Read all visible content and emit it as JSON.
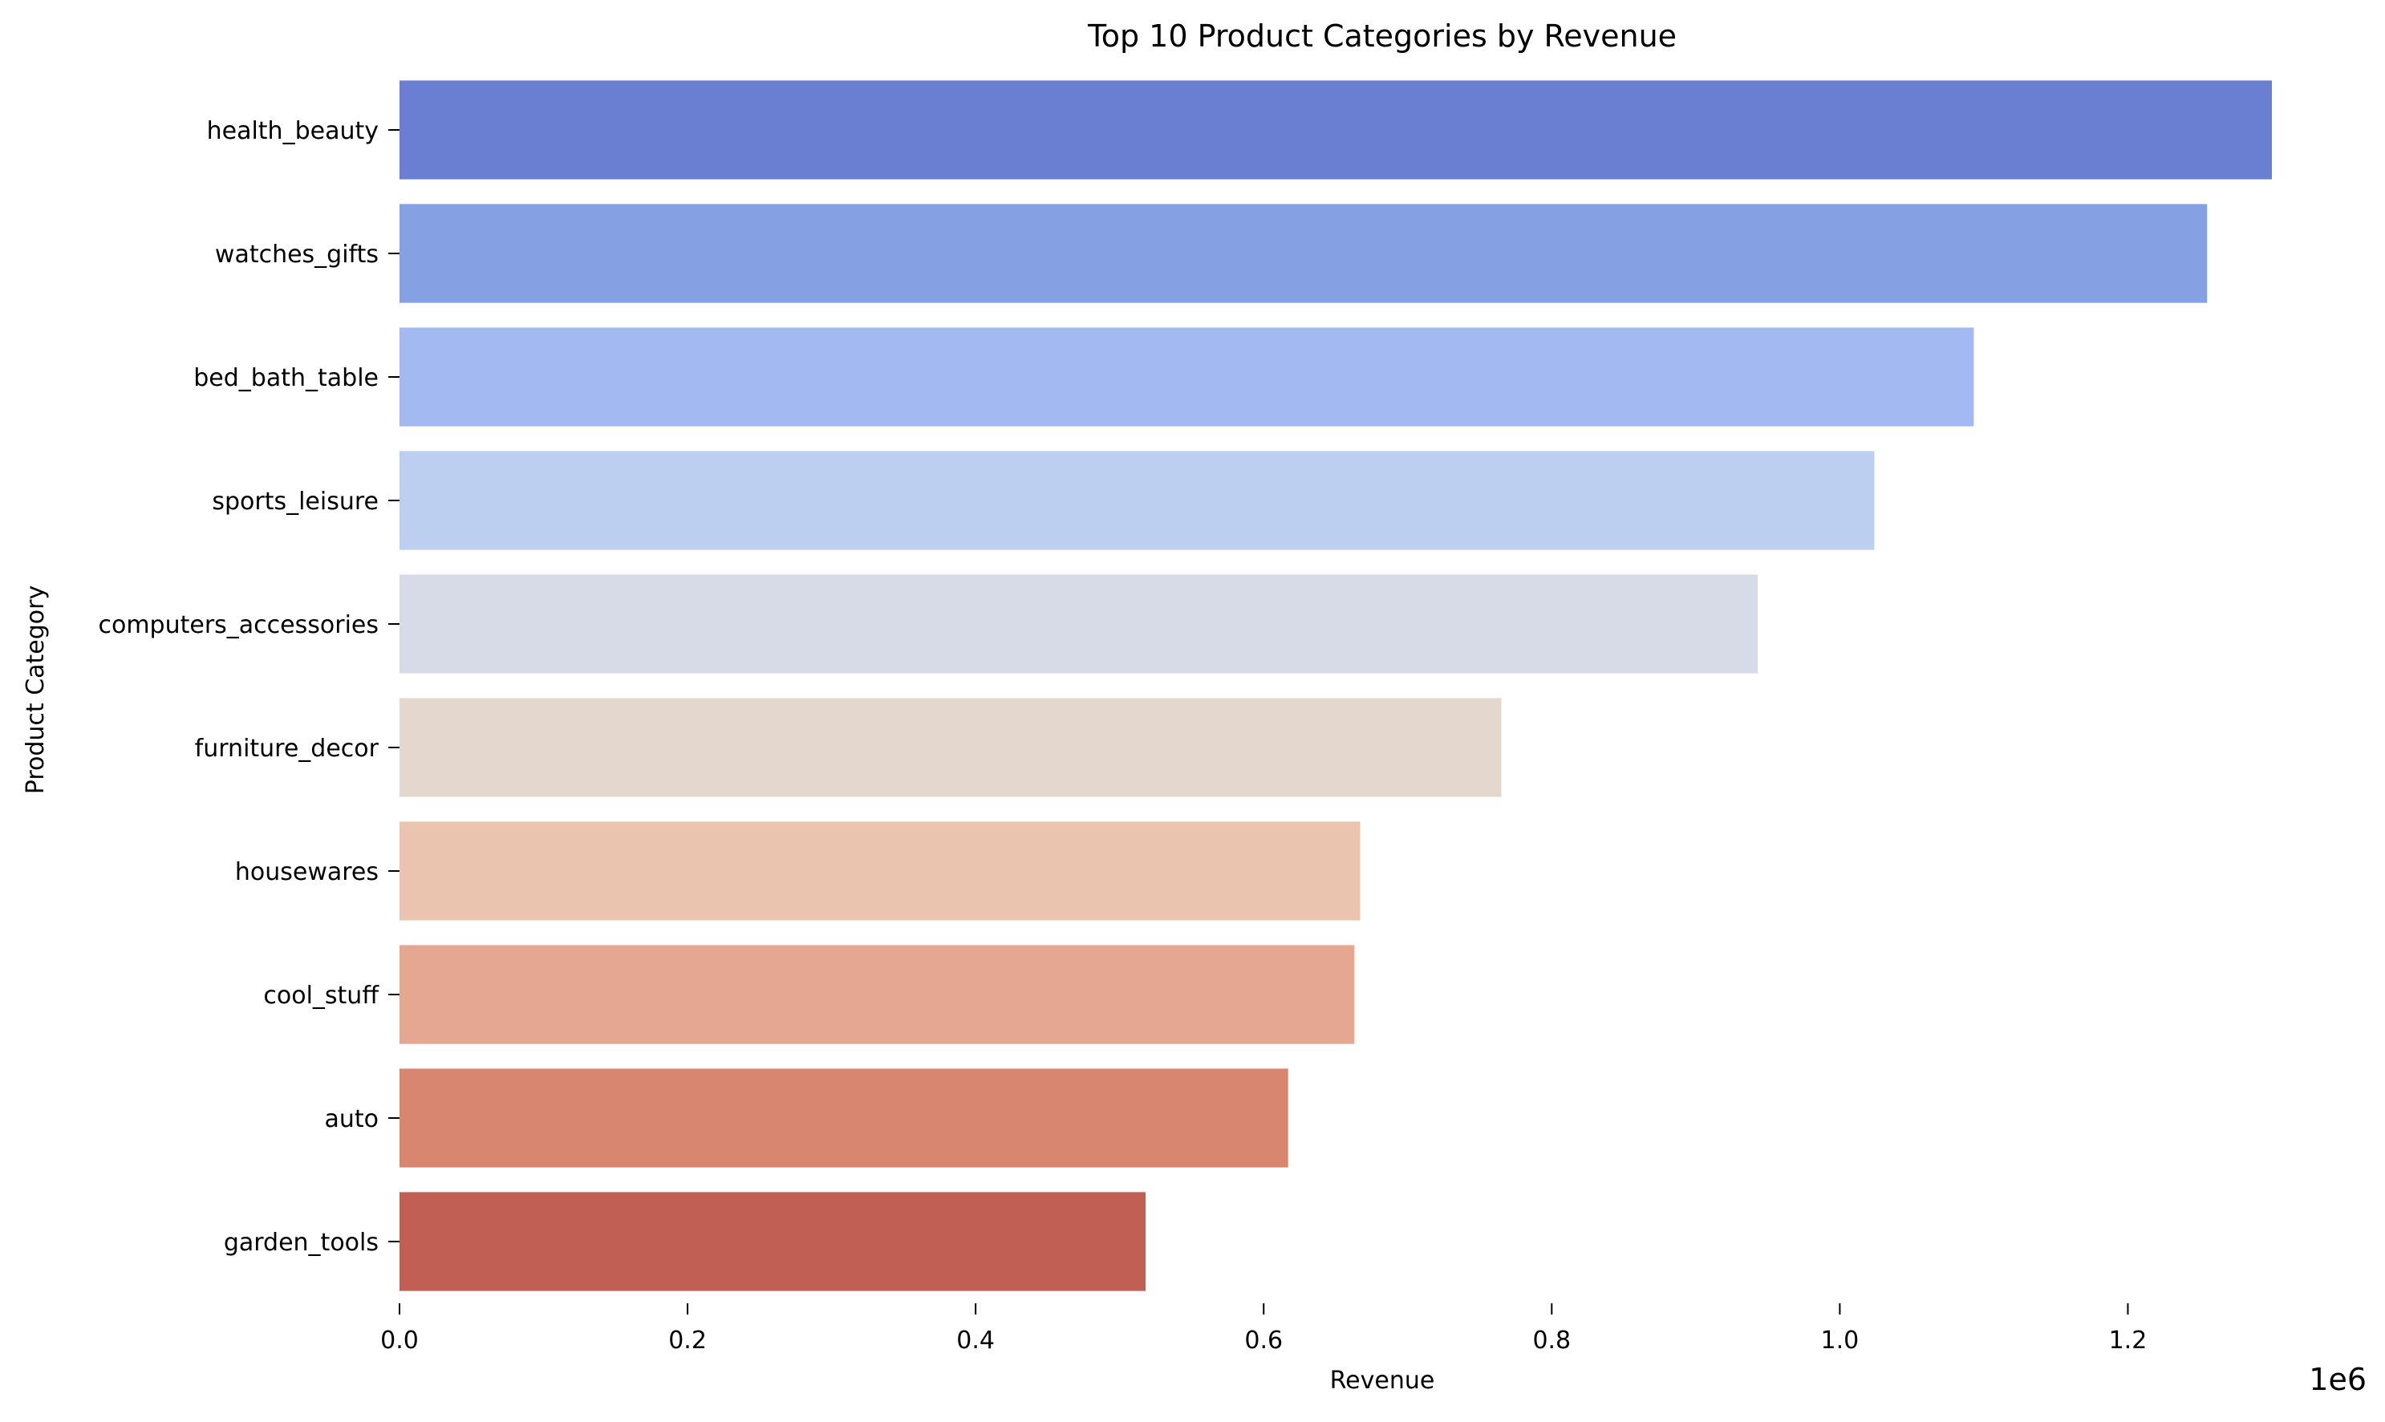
{
  "chart_data": {
    "type": "bar",
    "orientation": "horizontal",
    "title": "Top 10 Product Categories by Revenue",
    "xlabel": "Revenue",
    "ylabel": "Product Category",
    "x_offset_text": "1e6",
    "x_ticks": [
      "0.0",
      "0.2",
      "0.4",
      "0.6",
      "0.8",
      "1.0",
      "1.2"
    ],
    "xlim": [
      0,
      1.3
    ],
    "x_scale_note": "values in units of 1e6",
    "grid": false,
    "legend": "none",
    "categories": [
      "health_beauty",
      "watches_gifts",
      "bed_bath_table",
      "sports_leisure",
      "computers_accessories",
      "furniture_decor",
      "housewares",
      "cool_stuff",
      "auto",
      "garden_tools"
    ],
    "values": [
      1.3,
      1.255,
      1.093,
      1.024,
      0.943,
      0.765,
      0.667,
      0.663,
      0.617,
      0.518
    ],
    "colors": [
      "#6a7fd1",
      "#86a0e4",
      "#a2baf1",
      "#bdcff1",
      "#d6dbe7",
      "#e4d7ce",
      "#ebc4b0",
      "#e5a791",
      "#d98671",
      "#c25f54"
    ]
  }
}
